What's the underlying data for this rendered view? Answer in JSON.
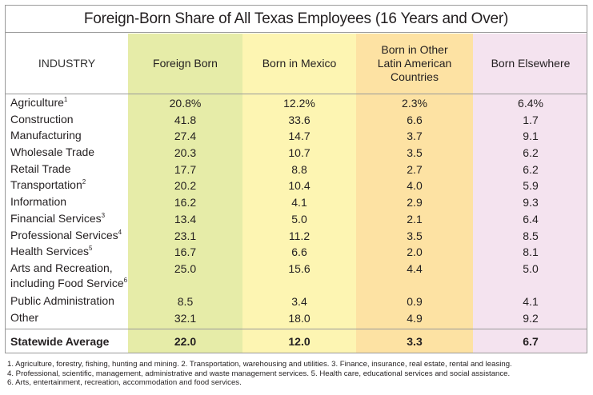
{
  "title": "Foreign-Born Share of All Texas Employees  (16 Years and Over)",
  "headers": {
    "industry": "INDUSTRY",
    "foreign_born": "Foreign Born",
    "mexico": "Born in Mexico",
    "latin_1": "Born in Other",
    "latin_2": "Latin American",
    "latin_3": "Countries",
    "elsewhere": "Born Elsewhere"
  },
  "rows": [
    {
      "industry": "Agriculture",
      "sup": "1",
      "foreign_born": "20.8%",
      "mexico": "12.2%",
      "latin": "2.3%",
      "elsewhere": "6.4%"
    },
    {
      "industry": "Construction",
      "sup": "",
      "foreign_born": "41.8",
      "mexico": "33.6",
      "latin": "6.6",
      "elsewhere": "1.7"
    },
    {
      "industry": "Manufacturing",
      "sup": "",
      "foreign_born": "27.4",
      "mexico": "14.7",
      "latin": "3.7",
      "elsewhere": "9.1"
    },
    {
      "industry": "Wholesale Trade",
      "sup": "",
      "foreign_born": "20.3",
      "mexico": "10.7",
      "latin": "3.5",
      "elsewhere": "6.2"
    },
    {
      "industry": "Retail Trade",
      "sup": "",
      "foreign_born": "17.7",
      "mexico": "8.8",
      "latin": "2.7",
      "elsewhere": "6.2"
    },
    {
      "industry": "Transportation",
      "sup": "2",
      "foreign_born": "20.2",
      "mexico": "10.4",
      "latin": "4.0",
      "elsewhere": "5.9"
    },
    {
      "industry": "Information",
      "sup": "",
      "foreign_born": "16.2",
      "mexico": "4.1",
      "latin": "2.9",
      "elsewhere": "9.3"
    },
    {
      "industry": "Financial Services",
      "sup": "3",
      "foreign_born": "13.4",
      "mexico": "5.0",
      "latin": "2.1",
      "elsewhere": "6.4"
    },
    {
      "industry": "Professional Services",
      "sup": "4",
      "foreign_born": "23.1",
      "mexico": "11.2",
      "latin": "3.5",
      "elsewhere": "8.5"
    },
    {
      "industry": "Health Services",
      "sup": "5",
      "foreign_born": "16.7",
      "mexico": "6.6",
      "latin": "2.0",
      "elsewhere": "8.1"
    },
    {
      "industry": "Arts and Recreation,",
      "industry_line2": "including Food Service",
      "sup": "6",
      "foreign_born": "25.0",
      "mexico": "15.6",
      "latin": "4.4",
      "elsewhere": "5.0"
    },
    {
      "industry": "Public Administration",
      "sup": "",
      "foreign_born": "8.5",
      "mexico": "3.4",
      "latin": "0.9",
      "elsewhere": "4.1"
    },
    {
      "industry": "Other",
      "sup": "",
      "foreign_born": "32.1",
      "mexico": "18.0",
      "latin": "4.9",
      "elsewhere": "9.2"
    }
  ],
  "average": {
    "industry": "Statewide Average",
    "foreign_born": "22.0",
    "mexico": "12.0",
    "latin": "3.3",
    "elsewhere": "6.7"
  },
  "footnotes": [
    "1. Agriculture, forestry, fishing, hunting and mining. 2. Transportation, warehousing and utilities. 3. Finance, insurance, real estate, rental and leasing.",
    "4. Professional, scientific, management, administrative and waste management services. 5. Health care, educational services and social assistance.",
    "6. Arts, entertainment, recreation, accommodation and food services."
  ],
  "colors": {
    "foreign_born_bg": "#e6eca8",
    "mexico_bg": "#fdf5b2",
    "latin_bg": "#fde2a3",
    "elsewhere_bg": "#f4e3ef"
  }
}
